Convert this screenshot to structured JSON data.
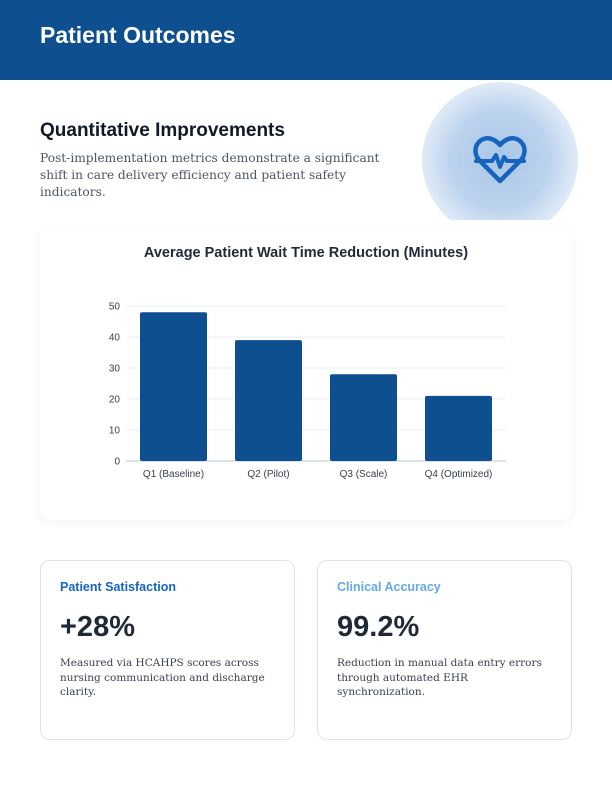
{
  "header": {
    "title": "Patient Outcomes"
  },
  "intro": {
    "title": "Quantitative Improvements",
    "text": "Post-implementation metrics demonstrate a significant shift in care delivery efficiency and patient safety indicators.",
    "icon": "heart-pulse-icon"
  },
  "colors": {
    "primary": "#0e4f8f",
    "accent_dark": "#1565c0",
    "accent_light": "#64a8ea"
  },
  "chart_data": {
    "type": "bar",
    "title": "Average Patient Wait Time Reduction (Minutes)",
    "categories": [
      "Q1 (Baseline)",
      "Q2 (Pilot)",
      "Q3 (Scale)",
      "Q4 (Optimized)"
    ],
    "values": [
      48,
      39,
      28,
      21
    ],
    "xlabel": "",
    "ylabel": "",
    "ylim": [
      0,
      50
    ],
    "yticks": [
      0,
      10,
      20,
      30,
      40,
      50
    ],
    "grid": true,
    "legend": "none",
    "bar_color": "#0e4f8f"
  },
  "cards": [
    {
      "label": "Patient Satisfaction",
      "value": "+28%",
      "desc": "Measured via HCAHPS scores across nursing communication and discharge clarity."
    },
    {
      "label": "Clinical Accuracy",
      "value": "99.2%",
      "desc": "Reduction in manual data entry errors through automated EHR synchronization."
    }
  ]
}
